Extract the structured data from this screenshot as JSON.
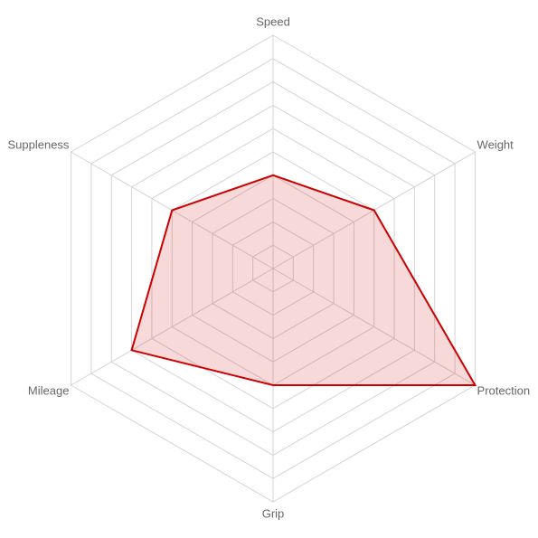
{
  "chart_data": {
    "type": "radar",
    "categories": [
      "Speed",
      "Weight",
      "Protection",
      "Grip",
      "Mileage",
      "Suppleness"
    ],
    "series": [
      {
        "color": "#cc0000",
        "values": [
          4,
          5,
          10,
          5,
          7,
          5
        ]
      }
    ],
    "rlim": [
      0,
      10
    ],
    "rticks": [
      1,
      2,
      3,
      4,
      5,
      6,
      7,
      8,
      9,
      10
    ],
    "grid": true
  }
}
